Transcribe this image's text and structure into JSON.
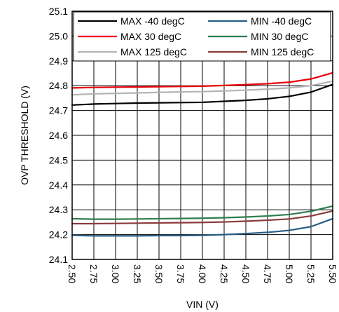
{
  "chart_data": {
    "type": "line",
    "title": "",
    "xlabel": "VIN (V)",
    "ylabel": "OVP THRESHOLD (V)",
    "xlim": [
      2.5,
      5.5
    ],
    "ylim": [
      24.1,
      25.1
    ],
    "grid": true,
    "legend_position": "top",
    "x_ticks": [
      "2.50",
      "2.75",
      "3.00",
      "3.25",
      "3.50",
      "3.75",
      "4.00",
      "4.25",
      "4.50",
      "4.75",
      "5.00",
      "5.25",
      "5.50"
    ],
    "y_ticks": [
      "24.1",
      "24.2",
      "24.3",
      "24.4",
      "24.5",
      "24.6",
      "24.7",
      "24.8",
      "24.9",
      "25.0",
      "25.1"
    ],
    "series": [
      {
        "name": "MAX -40 degC",
        "color": "#000000",
        "x": [
          2.5,
          2.75,
          3.0,
          3.25,
          3.5,
          3.75,
          4.0,
          4.25,
          4.5,
          4.75,
          5.0,
          5.25,
          5.5
        ],
        "y": [
          24.722,
          24.726,
          24.728,
          24.73,
          24.731,
          24.732,
          24.733,
          24.737,
          24.741,
          24.747,
          24.757,
          24.774,
          24.805
        ]
      },
      {
        "name": "MIN -40 degC",
        "color": "#2a5d84",
        "x": [
          2.5,
          2.75,
          3.0,
          3.25,
          3.5,
          3.75,
          4.0,
          4.25,
          4.5,
          4.75,
          5.0,
          5.25,
          5.5
        ],
        "y": [
          24.197,
          24.195,
          24.195,
          24.195,
          24.196,
          24.196,
          24.197,
          24.2,
          24.204,
          24.209,
          24.217,
          24.232,
          24.264
        ]
      },
      {
        "name": "MAX 30 degC",
        "color": "#e8000b",
        "x": [
          2.5,
          2.75,
          3.0,
          3.25,
          3.5,
          3.75,
          4.0,
          4.25,
          4.5,
          4.75,
          5.0,
          5.25,
          5.5
        ],
        "y": [
          24.791,
          24.793,
          24.794,
          24.795,
          24.796,
          24.797,
          24.798,
          24.801,
          24.804,
          24.808,
          24.814,
          24.827,
          24.852
        ]
      },
      {
        "name": "MIN 30 degC",
        "color": "#2e7d4f",
        "x": [
          2.5,
          2.75,
          3.0,
          3.25,
          3.5,
          3.75,
          4.0,
          4.25,
          4.5,
          4.75,
          5.0,
          5.25,
          5.5
        ],
        "y": [
          24.264,
          24.262,
          24.262,
          24.263,
          24.264,
          24.265,
          24.266,
          24.268,
          24.271,
          24.275,
          24.281,
          24.294,
          24.315
        ]
      },
      {
        "name": "MAX 125 degC",
        "color": "#b4b4b4",
        "x": [
          2.5,
          2.75,
          3.0,
          3.25,
          3.5,
          3.75,
          4.0,
          4.25,
          4.5,
          4.75,
          5.0,
          5.25,
          5.5
        ],
        "y": [
          24.763,
          24.767,
          24.769,
          24.771,
          24.773,
          24.775,
          24.776,
          24.779,
          24.782,
          24.786,
          24.791,
          24.8,
          24.818
        ]
      },
      {
        "name": "MIN 125 degC",
        "color": "#8b3a3a",
        "x": [
          2.5,
          2.75,
          3.0,
          3.25,
          3.5,
          3.75,
          4.0,
          4.25,
          4.5,
          4.75,
          5.0,
          5.25,
          5.5
        ],
        "y": [
          24.244,
          24.244,
          24.245,
          24.246,
          24.247,
          24.248,
          24.249,
          24.251,
          24.254,
          24.258,
          24.263,
          24.275,
          24.295
        ]
      }
    ],
    "legend_order": [
      [
        "MAX -40 degC",
        "MIN -40 degC"
      ],
      [
        "MAX 30 degC",
        "MIN 30 degC"
      ],
      [
        "MAX 125 degC",
        "MIN 125 degC"
      ]
    ]
  }
}
